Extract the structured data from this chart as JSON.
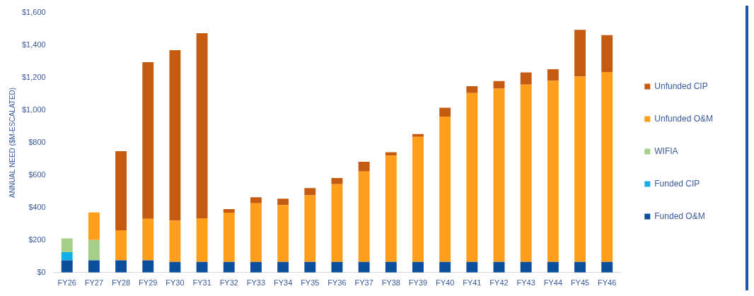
{
  "chart_data": {
    "type": "bar",
    "ylabel": "ANNUAL NEED ($M-ESCALATED)",
    "categories": [
      "FY26",
      "FY27",
      "FY28",
      "FY29",
      "FY30",
      "FY31",
      "FY32",
      "FY33",
      "FY34",
      "FY35",
      "FY36",
      "FY37",
      "FY38",
      "FY39",
      "FY40",
      "FY41",
      "FY42",
      "FY43",
      "FY44",
      "FY45",
      "FY46"
    ],
    "stacked": true,
    "series": [
      {
        "name": "Funded O&M",
        "color": "#0b4f9c",
        "values": [
          75,
          75,
          75,
          75,
          65,
          65,
          65,
          65,
          65,
          65,
          65,
          65,
          65,
          65,
          65,
          65,
          65,
          65,
          65,
          65,
          65
        ]
      },
      {
        "name": "Funded CIP",
        "color": "#13b0e8",
        "values": [
          50,
          0,
          0,
          0,
          0,
          0,
          0,
          0,
          0,
          0,
          0,
          0,
          0,
          0,
          0,
          0,
          0,
          0,
          0,
          0,
          0
        ]
      },
      {
        "name": "WIFIA",
        "color": "#a6d08a",
        "values": [
          85,
          125,
          0,
          0,
          0,
          0,
          0,
          0,
          0,
          0,
          0,
          0,
          0,
          0,
          0,
          0,
          0,
          0,
          0,
          0,
          0
        ]
      },
      {
        "name": "Unfunded O&M",
        "color": "#ff9e1b",
        "values": [
          0,
          170,
          185,
          256,
          255,
          269,
          304,
          361,
          351,
          411,
          479,
          557,
          655,
          770,
          895,
          1040,
          1067,
          1092,
          1116,
          1142,
          1170
        ]
      },
      {
        "name": "Unfunded CIP",
        "color": "#c55a11",
        "values": [
          0,
          0,
          487,
          964,
          1049,
          1140,
          22,
          38,
          39,
          44,
          38,
          60,
          21,
          18,
          55,
          43,
          47,
          75,
          71,
          288,
          227
        ]
      }
    ],
    "ylim": [
      0,
      1600
    ],
    "yticks": [
      {
        "value": 0,
        "label": "$0"
      },
      {
        "value": 200,
        "label": "$200"
      },
      {
        "value": 400,
        "label": "$400"
      },
      {
        "value": 600,
        "label": "$600"
      },
      {
        "value": 800,
        "label": "$800"
      },
      {
        "value": 1000,
        "label": "$1,000"
      },
      {
        "value": 1200,
        "label": "$1,200"
      },
      {
        "value": 1400,
        "label": "$1,400"
      },
      {
        "value": 1600,
        "label": "$1,600"
      }
    ],
    "grid": false,
    "legend": "right"
  }
}
